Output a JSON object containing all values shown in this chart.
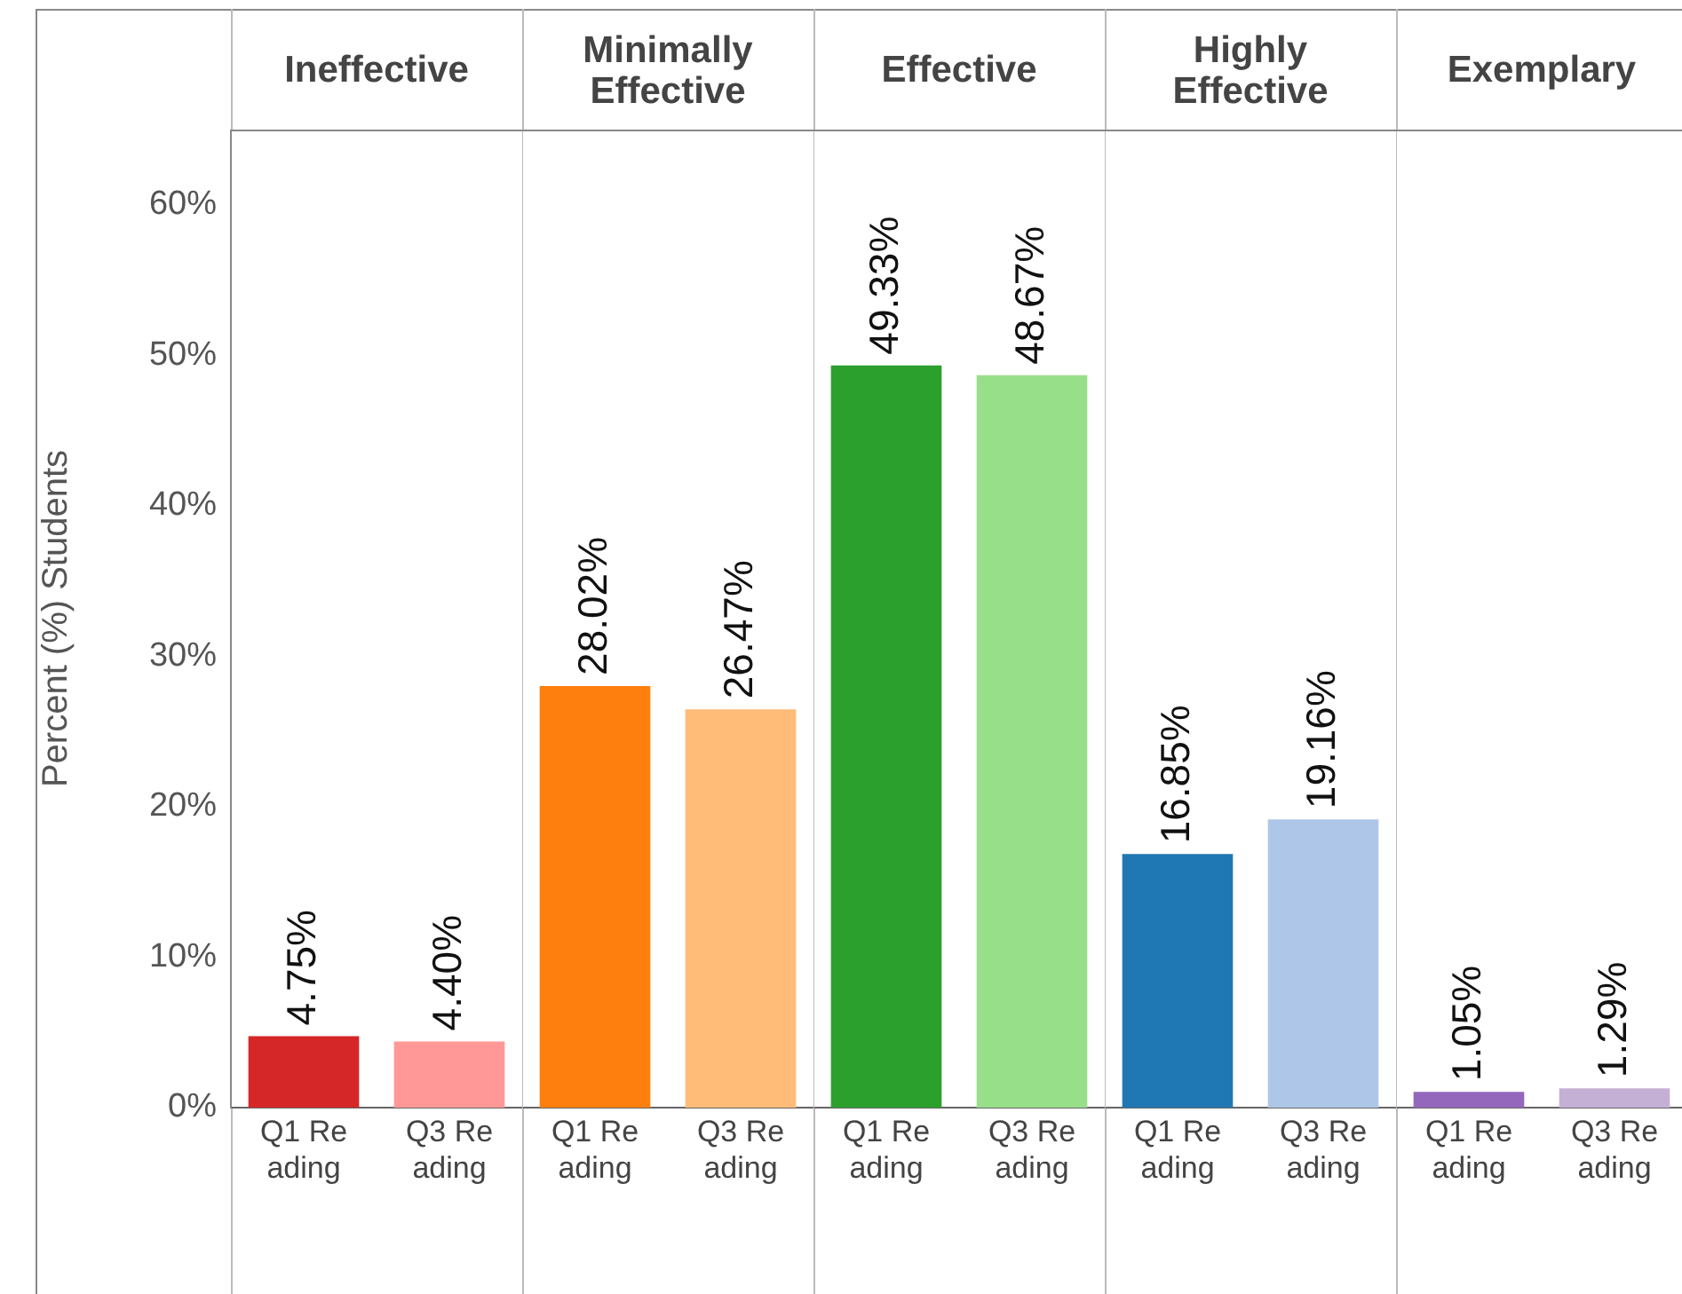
{
  "chart_data": [
    {
      "type": "bar",
      "title": "Ineffective",
      "ylabel": "Percent (%) Students",
      "categories": [
        "Q1 Reading",
        "Q3 Reading"
      ],
      "values": [
        4.75,
        4.4
      ],
      "colors": [
        "#d62728",
        "#ff9896"
      ],
      "value_labels": [
        "4.75%",
        "4.40%"
      ],
      "ylim": [
        0,
        65
      ],
      "yticks": [
        {
          "value": 0,
          "label": "0%"
        },
        {
          "value": 10,
          "label": "10%"
        },
        {
          "value": 20,
          "label": "20%"
        },
        {
          "value": 30,
          "label": "30%"
        },
        {
          "value": 40,
          "label": "40%"
        },
        {
          "value": 50,
          "label": "50%"
        },
        {
          "value": 60,
          "label": "60%"
        }
      ],
      "grid": false,
      "legend": false
    },
    {
      "type": "bar",
      "title": "Minimally Effective",
      "categories": [
        "Q1 Reading",
        "Q3 Reading"
      ],
      "values": [
        28.02,
        26.47
      ],
      "colors": [
        "#ff7f0e",
        "#ffbb78"
      ],
      "value_labels": [
        "28.02%",
        "26.47%"
      ],
      "ylim": [
        0,
        65
      ],
      "tick_labels": "x",
      "grid": false,
      "legend": false
    },
    {
      "type": "bar",
      "title": "Effective",
      "categories": [
        "Q1 Reading",
        "Q3 Reading"
      ],
      "values": [
        49.33,
        48.67
      ],
      "colors": [
        "#2ca02c",
        "#98df8a"
      ],
      "value_labels": [
        "49.33%",
        "48.67%"
      ],
      "ylim": [
        0,
        65
      ],
      "tick_labels": "x",
      "grid": false,
      "legend": false
    },
    {
      "type": "bar",
      "title": "Highly Effective",
      "categories": [
        "Q1 Reading",
        "Q3 Reading"
      ],
      "values": [
        16.85,
        19.16
      ],
      "colors": [
        "#1f77b4",
        "#aec7e8"
      ],
      "value_labels": [
        "16.85%",
        "19.16%"
      ],
      "ylim": [
        0,
        65
      ],
      "tick_labels": "x",
      "grid": false,
      "legend": false
    },
    {
      "type": "bar",
      "title": "Exemplary",
      "categories": [
        "Q1 Reading",
        "Q3 Reading"
      ],
      "values": [
        1.05,
        1.29
      ],
      "colors": [
        "#9467bd",
        "#c5b0d5"
      ],
      "value_labels": [
        "1.05%",
        "1.29%"
      ],
      "ylim": [
        0,
        65
      ],
      "tick_labels": "x",
      "grid": false,
      "legend": false
    }
  ]
}
